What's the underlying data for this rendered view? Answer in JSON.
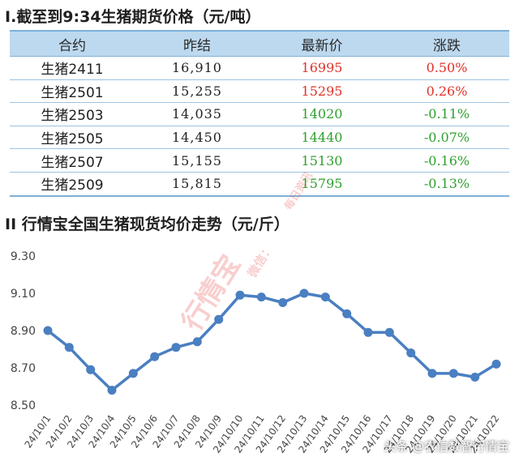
{
  "section1": {
    "title": "Ⅰ.截至到9:34生猪期货价格（元/吨）"
  },
  "table": {
    "headers": [
      "合约",
      "昨结",
      "最新价",
      "涨跌"
    ],
    "rows": [
      {
        "contract": "生猪2411",
        "prev_settle": "16,910",
        "latest": "16995",
        "change": "0.50%",
        "direction": "up"
      },
      {
        "contract": "生猪2501",
        "prev_settle": "15,255",
        "latest": "15295",
        "change": "0.26%",
        "direction": "up"
      },
      {
        "contract": "生猪2503",
        "prev_settle": "14,035",
        "latest": "14020",
        "change": "-0.11%",
        "direction": "down"
      },
      {
        "contract": "生猪2505",
        "prev_settle": "14,450",
        "latest": "14440",
        "change": "-0.07%",
        "direction": "down"
      },
      {
        "contract": "生猪2507",
        "prev_settle": "15,155",
        "latest": "15130",
        "change": "-0.16%",
        "direction": "down"
      },
      {
        "contract": "生猪2509",
        "prev_settle": "15,815",
        "latest": "15795",
        "change": "-0.13%",
        "direction": "down"
      }
    ]
  },
  "section2": {
    "title": "II 行情宝全国生猪现货均价走势（元/斤）"
  },
  "chart_data": {
    "type": "line",
    "x": [
      "24/10/1",
      "24/10/2",
      "24/10/3",
      "24/10/4",
      "24/10/5",
      "24/10/6",
      "24/10/7",
      "24/10/8",
      "24/10/9",
      "24/10/10",
      "24/10/11",
      "24/10/12",
      "24/10/13",
      "24/10/14",
      "24/10/15",
      "24/10/16",
      "24/10/17",
      "24/10/18",
      "24/10/19",
      "24/10/20",
      "24/10/21",
      "24/10/22"
    ],
    "series": [
      {
        "values": [
          8.9,
          8.81,
          8.69,
          8.58,
          8.67,
          8.76,
          8.81,
          8.84,
          8.96,
          9.09,
          9.08,
          9.05,
          9.1,
          9.08,
          8.99,
          8.89,
          8.89,
          8.78,
          8.67,
          8.67,
          8.65,
          8.72
        ]
      }
    ],
    "yticks": [
      "9.30",
      "9.10",
      "8.90",
      "8.70",
      "8.50"
    ],
    "ylim": [
      8.5,
      9.3
    ],
    "grid": false,
    "line_color": "#4a7fc1",
    "title": "",
    "xlabel": "",
    "ylabel": ""
  },
  "watermark": {
    "brand": "行情宝",
    "wechat": "微信：",
    "daily": "每日资讯"
  },
  "footer": {
    "text": "头条 @农信数智行情宝"
  }
}
